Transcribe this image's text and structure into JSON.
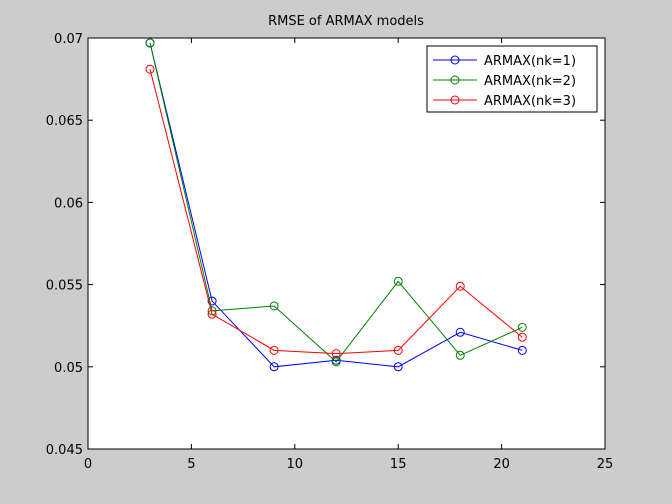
{
  "chart_data": {
    "type": "line",
    "title": "RMSE of ARMAX models",
    "xlabel": "",
    "ylabel": "",
    "xlim": [
      0,
      25
    ],
    "ylim": [
      0.045,
      0.07
    ],
    "xticks": [
      0,
      5,
      10,
      15,
      20,
      25
    ],
    "xtick_labels": [
      "0",
      "5",
      "10",
      "15",
      "20",
      "25"
    ],
    "yticks": [
      0.045,
      0.05,
      0.055,
      0.06,
      0.065,
      0.07
    ],
    "ytick_labels": [
      "0.045",
      "0.05",
      "0.055",
      "0.06",
      "0.065",
      "0.07"
    ],
    "grid": false,
    "legend_position": "top-right",
    "marker": "circle",
    "x": [
      3,
      6,
      9,
      12,
      15,
      18,
      21
    ],
    "series": [
      {
        "name": "ARMAX(nk=1)",
        "color": "#0000ff",
        "values": [
          0.0697,
          0.054,
          0.05,
          0.0504,
          0.05,
          0.0521,
          0.051
        ]
      },
      {
        "name": "ARMAX(nk=2)",
        "color": "#008000",
        "values": [
          0.0697,
          0.0534,
          0.0537,
          0.0503,
          0.0552,
          0.0507,
          0.0524
        ]
      },
      {
        "name": "ARMAX(nk=3)",
        "color": "#ff0000",
        "values": [
          0.0681,
          0.0532,
          0.051,
          0.0508,
          0.051,
          0.0549,
          0.0518
        ]
      }
    ]
  }
}
